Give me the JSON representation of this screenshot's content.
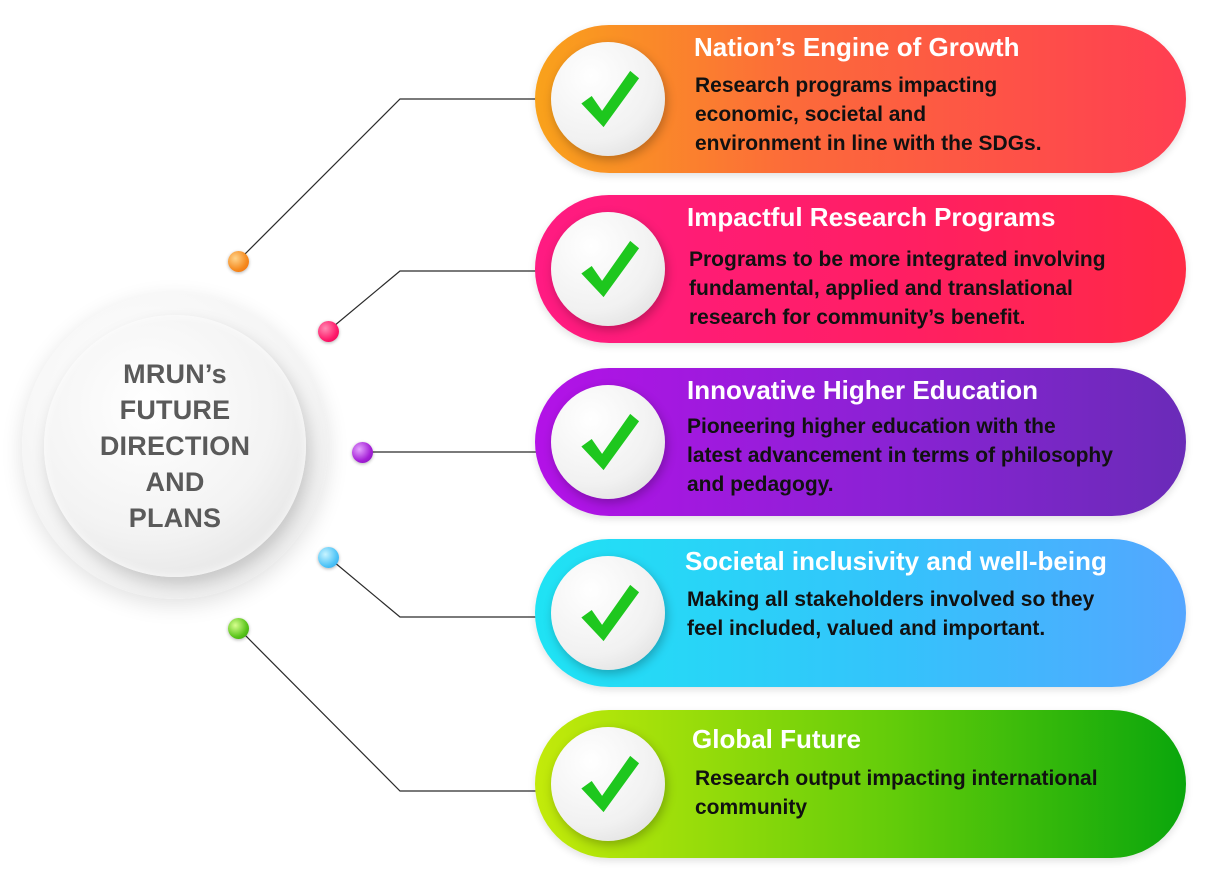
{
  "hub": {
    "lines": [
      "MRUN’s",
      "FUTURE",
      "DIRECTION",
      "AND",
      "PLANS"
    ]
  },
  "items": [
    {
      "title": "Nation’s Engine of Growth",
      "description": [
        "Research programs impacting",
        "economic, societal and",
        "environment in line with the SDGs."
      ],
      "gradient": [
        "#f9a21b",
        "#ff3e52"
      ],
      "dot_color": "#f58a1f"
    },
    {
      "title": "Impactful Research Programs",
      "description": [
        "Programs to be more integrated involving",
        "fundamental, applied and translational",
        "research for  community’s benefit."
      ],
      "gradient": [
        "#ff1b82",
        "#ff2a45"
      ],
      "dot_color": "#ff1b6b"
    },
    {
      "title": "Innovative Higher Education",
      "description": [
        "Pioneering higher education with the",
        "latest advancement in terms of philosophy",
        "and pedagogy."
      ],
      "gradient": [
        "#b312e7",
        "#6a2bb8"
      ],
      "dot_color": "#a41fd6"
    },
    {
      "title": "Societal inclusivity and well-being",
      "description": [
        "Making all stakeholders involved so they",
        "feel included, valued and important."
      ],
      "gradient": [
        "#1fe3f4",
        "#54a6ff"
      ],
      "dot_color": "#4fc4f7"
    },
    {
      "title": "Global Future",
      "description": [
        "Research output impacting international",
        "community"
      ],
      "gradient": [
        "#c3ea0a",
        "#0aa60c"
      ],
      "dot_color": "#59c41b"
    }
  ],
  "icons": {
    "check": "checkmark-icon",
    "check_color": "#1ec71e"
  }
}
